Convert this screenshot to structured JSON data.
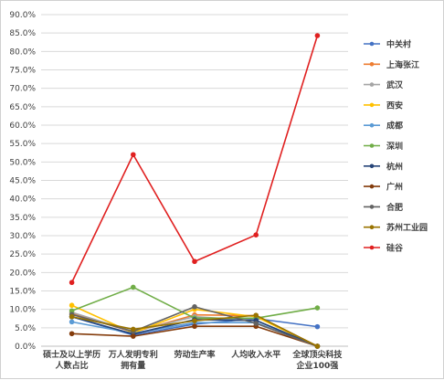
{
  "chart_data": {
    "type": "line",
    "title": "",
    "xlabel": "",
    "ylabel": "",
    "ylim": [
      0,
      0.9
    ],
    "ytick_step": 0.05,
    "ytick_format": "percent_1dp",
    "grid": true,
    "legend_position": "right",
    "categories": [
      [
        "硕士及以上学历",
        "人数占比"
      ],
      [
        "万人发明专利",
        "拥有量"
      ],
      [
        "劳动生产率"
      ],
      [
        "人均收入水平"
      ],
      [
        "全球顶尖科技",
        "企业100强"
      ]
    ],
    "series": [
      {
        "name": "中关村",
        "color": "#4472c4",
        "values": [
          0.08,
          0.03,
          0.06,
          0.075,
          0.053
        ]
      },
      {
        "name": "上海张江",
        "color": "#ed7d31",
        "values": [
          0.09,
          0.038,
          0.085,
          0.083,
          0.0
        ]
      },
      {
        "name": "武汉",
        "color": "#a5a5a5",
        "values": [
          0.092,
          0.04,
          0.08,
          0.07,
          0.0
        ]
      },
      {
        "name": "西安",
        "color": "#ffc000",
        "values": [
          0.111,
          0.036,
          0.1,
          0.08,
          0.0
        ]
      },
      {
        "name": "成都",
        "color": "#5b9bd5",
        "values": [
          0.066,
          0.035,
          0.064,
          0.064,
          0.0
        ]
      },
      {
        "name": "深圳",
        "color": "#70ad47",
        "values": [
          0.096,
          0.16,
          0.076,
          0.076,
          0.104
        ]
      },
      {
        "name": "杭州",
        "color": "#264478",
        "values": [
          0.08,
          0.033,
          0.072,
          0.07,
          0.0
        ]
      },
      {
        "name": "广州",
        "color": "#843c0c",
        "values": [
          0.034,
          0.027,
          0.054,
          0.054,
          0.0
        ]
      },
      {
        "name": "合肥",
        "color": "#636363",
        "values": [
          0.086,
          0.04,
          0.107,
          0.062,
          0.0
        ]
      },
      {
        "name": "苏州工业园",
        "color": "#997300",
        "values": [
          0.08,
          0.046,
          0.069,
          0.084,
          0.0
        ]
      },
      {
        "name": "硅谷",
        "color": "#e02020",
        "values": [
          0.173,
          0.52,
          0.23,
          0.302,
          0.843
        ]
      }
    ]
  }
}
